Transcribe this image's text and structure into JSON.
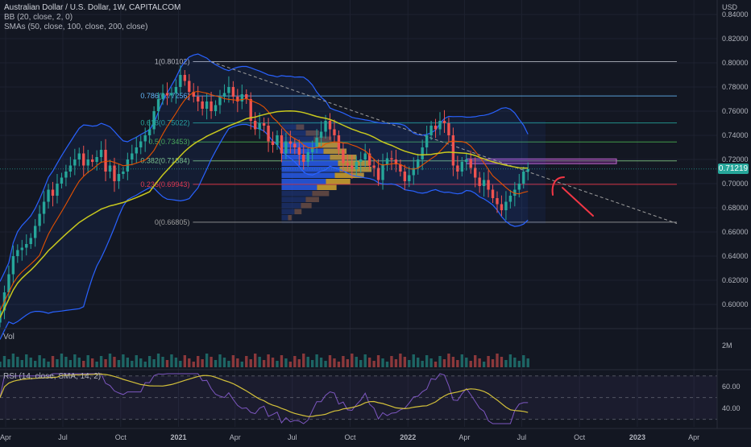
{
  "legend": {
    "title": "Australian Dollar / U.S. Dollar, 1W, CAPITALCOM",
    "bb": "BB (20, close, 2, 0)",
    "smas": "SMAs (50, close, 100, close, 200, close)",
    "vol": "Vol",
    "rsi": "RSI (14, close, SMA, 14, 2)"
  },
  "price_scale": {
    "currency": "USD",
    "current_price": "0.71219",
    "current_price_value": 0.71219,
    "vol_label": "2M"
  },
  "colors": {
    "background": "#131722",
    "up": "#26a69a",
    "down": "#ef5350",
    "bollinger": "#2962ff",
    "sma_fast": "#e65100",
    "sma_slow": "#c8c81e",
    "rsi": "#7e57c2",
    "rsi_ma": "#d4c13a",
    "annotation": "#f23645"
  },
  "chart_data": {
    "type": "candlestick",
    "y_range": [
      0.582,
      0.852
    ],
    "y_ticks": [
      "0.84000",
      "0.82000",
      "0.80000",
      "0.78000",
      "0.76000",
      "0.74000",
      "0.72000",
      "0.70000",
      "0.68000",
      "0.66000",
      "0.64000",
      "0.62000",
      "0.60000"
    ],
    "y_tick_values": [
      0.84,
      0.82,
      0.8,
      0.78,
      0.76,
      0.74,
      0.72,
      0.7,
      0.68,
      0.66,
      0.64,
      0.62,
      0.6
    ],
    "x_ticks": [
      "Apr",
      "Jul",
      "Oct",
      "2021",
      "Apr",
      "Jul",
      "Oct",
      "2022",
      "Apr",
      "Jul",
      "Oct",
      "2023",
      "Apr"
    ],
    "x_range": [
      "2020-03-23",
      "2023-05-08"
    ],
    "x_tick_dates": [
      "2020-04-01",
      "2020-07-01",
      "2020-10-01",
      "2021-01-01",
      "2021-04-01",
      "2021-07-01",
      "2021-10-01",
      "2022-01-01",
      "2022-04-01",
      "2022-07-01",
      "2022-10-01",
      "2023-01-01",
      "2023-04-01"
    ],
    "first_week": "2020-03-23",
    "week_count": 121,
    "closes": [
      0.595,
      0.61,
      0.625,
      0.64,
      0.645,
      0.647,
      0.65,
      0.655,
      0.665,
      0.675,
      0.685,
      0.695,
      0.69,
      0.7,
      0.705,
      0.71,
      0.715,
      0.72,
      0.725,
      0.715,
      0.72,
      0.718,
      0.722,
      0.728,
      0.71,
      0.715,
      0.702,
      0.708,
      0.71,
      0.72,
      0.725,
      0.73,
      0.735,
      0.74,
      0.745,
      0.76,
      0.77,
      0.775,
      0.773,
      0.775,
      0.78,
      0.79,
      0.785,
      0.776,
      0.772,
      0.768,
      0.762,
      0.768,
      0.76,
      0.765,
      0.772,
      0.775,
      0.78,
      0.772,
      0.768,
      0.774,
      0.77,
      0.752,
      0.745,
      0.75,
      0.748,
      0.735,
      0.732,
      0.74,
      0.725,
      0.735,
      0.733,
      0.73,
      0.724,
      0.718,
      0.726,
      0.73,
      0.738,
      0.743,
      0.752,
      0.745,
      0.74,
      0.728,
      0.717,
      0.715,
      0.712,
      0.718,
      0.72,
      0.725,
      0.715,
      0.713,
      0.703,
      0.716,
      0.721,
      0.72,
      0.716,
      0.71,
      0.702,
      0.707,
      0.713,
      0.72,
      0.73,
      0.74,
      0.748,
      0.745,
      0.752,
      0.75,
      0.74,
      0.715,
      0.71,
      0.718,
      0.72,
      0.713,
      0.705,
      0.698,
      0.703,
      0.695,
      0.688,
      0.683,
      0.678,
      0.685,
      0.69,
      0.695,
      0.7,
      0.71,
      0.712
    ],
    "fibonacci": [
      {
        "label": "1(0.80102)",
        "value": 0.80102
      },
      {
        "label": "0.786(0.77256)",
        "value": 0.77256
      },
      {
        "label": "0.618(0.75022)",
        "value": 0.75022
      },
      {
        "label": "0.5(0.73453)",
        "value": 0.73453
      },
      {
        "label": "0.382(0.71884)",
        "value": 0.71884
      },
      {
        "label": "0.236(0.69943)",
        "value": 0.69943
      },
      {
        "label": "0(0.66805)",
        "value": 0.66805
      }
    ],
    "rsi": {
      "y_range": [
        23,
        72
      ],
      "y_ticks": [
        "60.00",
        "40.00"
      ],
      "y_tick_values": [
        60,
        40
      ],
      "band_upper": 70,
      "band_lower": 30,
      "midline": 50
    }
  }
}
